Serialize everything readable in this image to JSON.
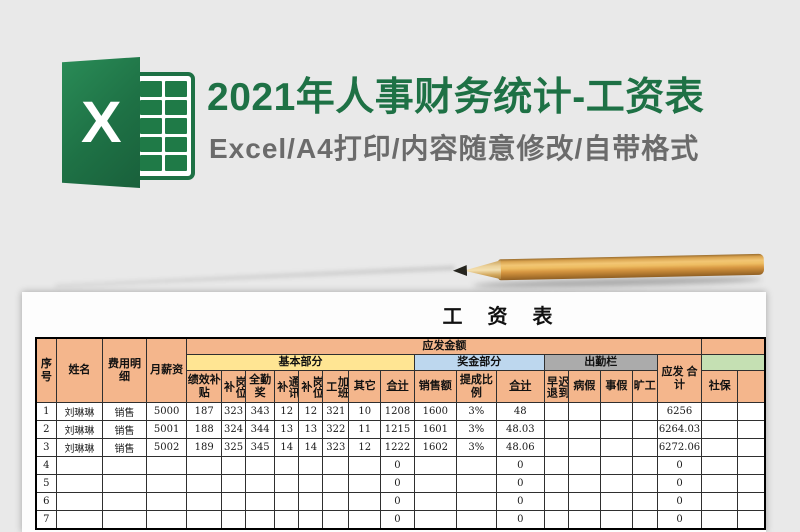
{
  "banner": {
    "title": "2021年人事财务统计-工资表",
    "subtitle": "Excel/A4打印/内容随意修改/自带格式",
    "excel_letter": "X"
  },
  "sheet": {
    "title": "工 资 表",
    "sections": {
      "payable": "应发金额",
      "basic": "基本部分",
      "bonus": "奖金部分",
      "attendance": "出勤栏"
    },
    "columns": {
      "index": "序号",
      "name": "姓名",
      "expense": "费用明细",
      "salary": "月薪资",
      "perf_subsidy": "绩效补贴",
      "post_subsidy_1": "岗位补",
      "full_attendance": "全勤奖",
      "comm_subsidy": "通讯补",
      "post_subsidy_2": "岗位补",
      "overtime": "加班工",
      "other": "其它",
      "subtotal_basic": "合计",
      "sales_amount": "销售额",
      "commission_rate": "提成比例",
      "subtotal_bonus": "合计",
      "late_early": "迟到早退",
      "sick_leave": "病假",
      "personal_leave": "事假",
      "absenteeism": "旷工",
      "payable_total": "应发 合计",
      "social_security": "社保"
    },
    "rows": [
      [
        "1",
        "刘琳琳",
        "销售",
        "5000",
        "187",
        "323",
        "343",
        "12",
        "12",
        "321",
        "10",
        "1208",
        "1600",
        "3%",
        "48",
        "",
        "",
        "",
        "",
        "6256",
        "",
        ""
      ],
      [
        "2",
        "刘琳琳",
        "销售",
        "5001",
        "188",
        "324",
        "344",
        "13",
        "13",
        "322",
        "11",
        "1215",
        "1601",
        "3%",
        "48.03",
        "",
        "",
        "",
        "",
        "6264.03",
        "",
        ""
      ],
      [
        "3",
        "刘琳琳",
        "销售",
        "5002",
        "189",
        "325",
        "345",
        "14",
        "14",
        "323",
        "12",
        "1222",
        "1602",
        "3%",
        "48.06",
        "",
        "",
        "",
        "",
        "6272.06",
        "",
        ""
      ],
      [
        "4",
        "",
        "",
        "",
        "",
        "",
        "",
        "",
        "",
        "",
        "",
        "0",
        "",
        "",
        "0",
        "",
        "",
        "",
        "",
        "0",
        "",
        ""
      ],
      [
        "5",
        "",
        "",
        "",
        "",
        "",
        "",
        "",
        "",
        "",
        "",
        "0",
        "",
        "",
        "0",
        "",
        "",
        "",
        "",
        "0",
        "",
        ""
      ],
      [
        "6",
        "",
        "",
        "",
        "",
        "",
        "",
        "",
        "",
        "",
        "",
        "0",
        "",
        "",
        "0",
        "",
        "",
        "",
        "",
        "0",
        "",
        ""
      ],
      [
        "7",
        "",
        "",
        "",
        "",
        "",
        "",
        "",
        "",
        "",
        "",
        "0",
        "",
        "",
        "0",
        "",
        "",
        "",
        "",
        "0",
        "",
        ""
      ]
    ]
  },
  "colors": {
    "excel_green": "#1e7145",
    "subtitle_gray": "#6b6b6b",
    "background_gray": "#e9e9e9",
    "header_peach": "#f4b68c",
    "section_yellow": "#ffe593",
    "section_blue": "#bdd7ee",
    "section_gray": "#ababab",
    "section_green": "#c5e0b3",
    "pencil_wood": "#d9a34f"
  }
}
